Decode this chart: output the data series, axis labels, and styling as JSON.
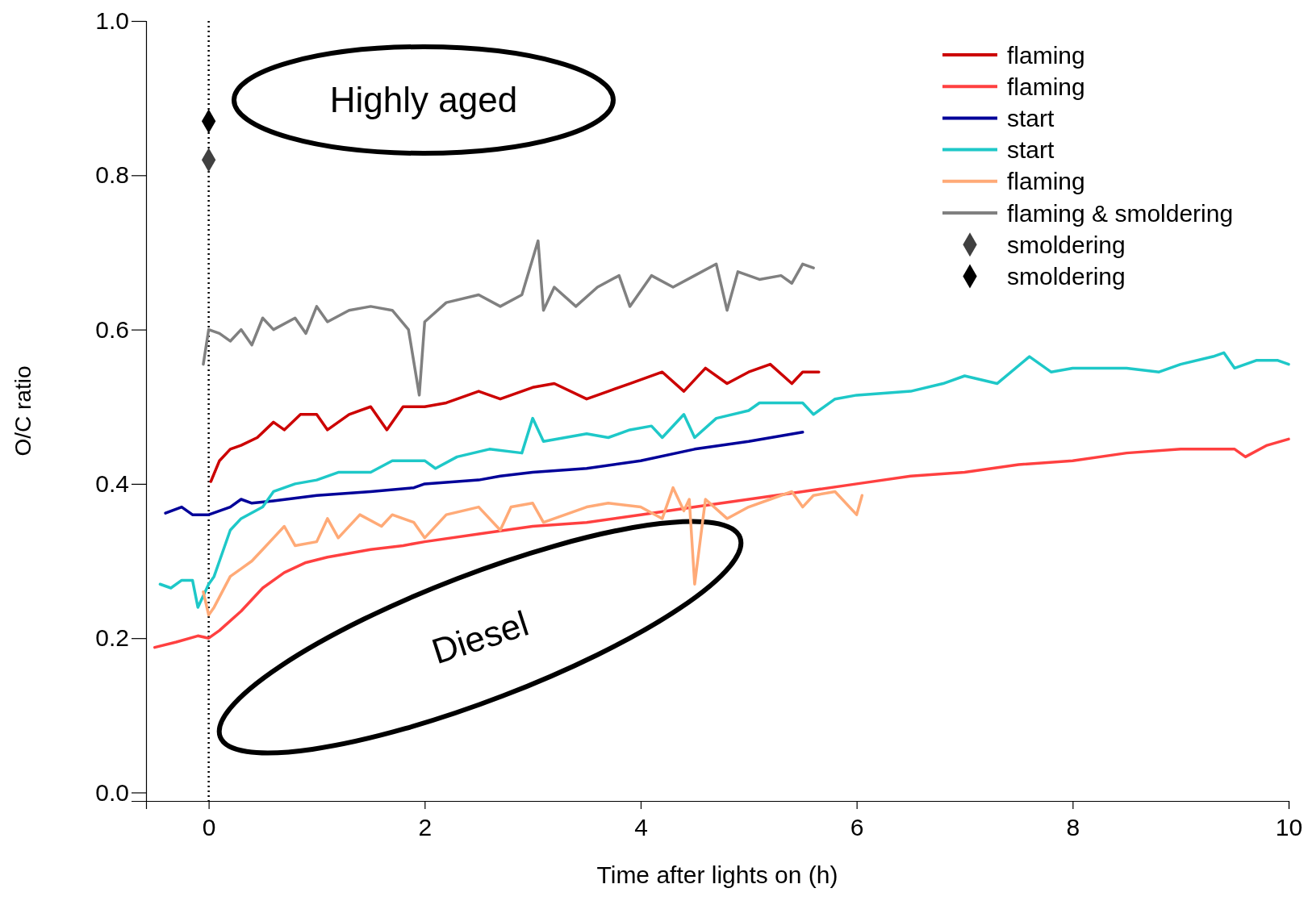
{
  "chart_data": {
    "type": "line",
    "xlabel": "Time after lights on (h)",
    "ylabel": "O/C ratio",
    "xlim": [
      -0.58,
      10
    ],
    "xticks": [
      0,
      2,
      4,
      6,
      8,
      10
    ],
    "ylim": [
      -0.011,
      1.0
    ],
    "yticks": [
      {
        "value": 0,
        "label": "0.0"
      },
      0.2,
      0.4,
      0.6,
      0.8,
      {
        "value": 1,
        "label": "1.0"
      }
    ],
    "grid": false,
    "legend": "top right",
    "marker": "none",
    "line_style": "solid",
    "ref_lines": [
      {
        "axis": "x",
        "value": 0,
        "color": "#000000",
        "line_style": "dotted"
      }
    ],
    "annotations": [
      "Highly aged",
      "Diesel"
    ],
    "series": [
      {
        "name": "flaming",
        "color": "#cc0000",
        "x": [
          0.02,
          0.1,
          0.2,
          0.3,
          0.45,
          0.6,
          0.7,
          0.85,
          1.0,
          1.1,
          1.3,
          1.5,
          1.65,
          1.8,
          2.0,
          2.2,
          2.5,
          2.7,
          3.0,
          3.2,
          3.5,
          3.7,
          3.9,
          4.2,
          4.4,
          4.6,
          4.8,
          5.0,
          5.2,
          5.4,
          5.5,
          5.65
        ],
        "values": [
          0.403,
          0.43,
          0.445,
          0.45,
          0.46,
          0.48,
          0.47,
          0.49,
          0.49,
          0.47,
          0.49,
          0.5,
          0.47,
          0.5,
          0.5,
          0.505,
          0.52,
          0.51,
          0.525,
          0.53,
          0.51,
          0.52,
          0.53,
          0.545,
          0.52,
          0.55,
          0.53,
          0.545,
          0.555,
          0.53,
          0.545,
          0.545
        ]
      },
      {
        "name": "flaming",
        "color": "#ff4040",
        "x": [
          -0.5,
          -0.3,
          -0.1,
          0,
          0.1,
          0.3,
          0.5,
          0.7,
          0.9,
          1.1,
          1.3,
          1.5,
          1.8,
          2.0,
          2.5,
          3.0,
          3.5,
          4.0,
          4.5,
          5.0,
          5.5,
          6.0,
          6.5,
          7.0,
          7.5,
          8.0,
          8.5,
          9.0,
          9.5,
          9.6,
          9.8,
          10
        ],
        "values": [
          0.188,
          0.195,
          0.203,
          0.2,
          0.21,
          0.235,
          0.265,
          0.285,
          0.298,
          0.305,
          0.31,
          0.315,
          0.32,
          0.325,
          0.335,
          0.345,
          0.35,
          0.36,
          0.37,
          0.38,
          0.39,
          0.4,
          0.41,
          0.415,
          0.425,
          0.43,
          0.44,
          0.445,
          0.445,
          0.435,
          0.45,
          0.458
        ]
      },
      {
        "name": "start",
        "color": "#000099",
        "x": [
          -0.4,
          -0.25,
          -0.15,
          0,
          0.2,
          0.3,
          0.4,
          0.6,
          1.0,
          1.5,
          1.9,
          2.0,
          2.5,
          2.7,
          3.0,
          3.5,
          4.0,
          4.5,
          5.0,
          5.5
        ],
        "values": [
          0.362,
          0.37,
          0.36,
          0.36,
          0.37,
          0.38,
          0.375,
          0.378,
          0.385,
          0.39,
          0.395,
          0.4,
          0.405,
          0.41,
          0.415,
          0.42,
          0.43,
          0.445,
          0.455,
          0.467
        ]
      },
      {
        "name": "start",
        "color": "#1ec8c8",
        "x": [
          -0.45,
          -0.35,
          -0.25,
          -0.15,
          -0.1,
          0,
          0.05,
          0.1,
          0.2,
          0.3,
          0.5,
          0.6,
          0.8,
          1.0,
          1.2,
          1.5,
          1.7,
          2.0,
          2.1,
          2.3,
          2.6,
          2.9,
          3.0,
          3.1,
          3.5,
          3.7,
          3.9,
          4.1,
          4.2,
          4.4,
          4.5,
          4.7,
          5.0,
          5.1,
          5.5,
          5.6,
          5.8,
          6.0,
          6.5,
          6.8,
          7.0,
          7.3,
          7.6,
          7.8,
          8.0,
          8.5,
          8.8,
          9.0,
          9.3,
          9.4,
          9.5,
          9.7,
          9.9,
          10
        ],
        "values": [
          0.27,
          0.265,
          0.275,
          0.275,
          0.24,
          0.27,
          0.28,
          0.3,
          0.34,
          0.355,
          0.37,
          0.39,
          0.4,
          0.405,
          0.415,
          0.415,
          0.43,
          0.43,
          0.42,
          0.435,
          0.445,
          0.44,
          0.485,
          0.455,
          0.465,
          0.46,
          0.47,
          0.475,
          0.46,
          0.49,
          0.46,
          0.485,
          0.495,
          0.505,
          0.505,
          0.49,
          0.51,
          0.515,
          0.52,
          0.53,
          0.54,
          0.53,
          0.565,
          0.545,
          0.55,
          0.55,
          0.545,
          0.555,
          0.565,
          0.57,
          0.55,
          0.56,
          0.56,
          0.555
        ]
      },
      {
        "name": "flaming",
        "color": "#ffaa77",
        "x": [
          -0.05,
          0,
          0.05,
          0.2,
          0.3,
          0.4,
          0.5,
          0.6,
          0.7,
          0.8,
          1.0,
          1.1,
          1.2,
          1.4,
          1.6,
          1.7,
          1.9,
          2.0,
          2.2,
          2.5,
          2.7,
          2.8,
          3.0,
          3.1,
          3.3,
          3.5,
          3.7,
          4.0,
          4.2,
          4.3,
          4.4,
          4.45,
          4.5,
          4.6,
          4.8,
          5.0,
          5.2,
          5.4,
          5.5,
          5.6,
          5.8,
          6.0,
          6.05
        ],
        "values": [
          0.26,
          0.23,
          0.24,
          0.28,
          0.29,
          0.3,
          0.315,
          0.33,
          0.345,
          0.32,
          0.325,
          0.355,
          0.33,
          0.36,
          0.345,
          0.36,
          0.35,
          0.33,
          0.36,
          0.37,
          0.34,
          0.37,
          0.375,
          0.35,
          0.36,
          0.37,
          0.375,
          0.37,
          0.355,
          0.395,
          0.365,
          0.38,
          0.27,
          0.38,
          0.355,
          0.37,
          0.38,
          0.39,
          0.37,
          0.385,
          0.39,
          0.36,
          0.385
        ]
      },
      {
        "name": "flaming & smoldering",
        "color": "#808080",
        "x": [
          -0.05,
          0,
          0.1,
          0.2,
          0.3,
          0.4,
          0.5,
          0.6,
          0.8,
          0.9,
          1.0,
          1.1,
          1.3,
          1.5,
          1.7,
          1.85,
          1.95,
          2.0,
          2.2,
          2.5,
          2.7,
          2.9,
          3.05,
          3.1,
          3.2,
          3.4,
          3.6,
          3.8,
          3.9,
          4.1,
          4.3,
          4.5,
          4.7,
          4.8,
          4.9,
          5.1,
          5.3,
          5.4,
          5.5,
          5.6
        ],
        "values": [
          0.555,
          0.6,
          0.595,
          0.585,
          0.6,
          0.58,
          0.615,
          0.6,
          0.615,
          0.595,
          0.63,
          0.61,
          0.625,
          0.63,
          0.625,
          0.6,
          0.515,
          0.61,
          0.635,
          0.645,
          0.63,
          0.645,
          0.715,
          0.625,
          0.655,
          0.63,
          0.655,
          0.67,
          0.63,
          0.67,
          0.655,
          0.67,
          0.685,
          0.625,
          0.675,
          0.665,
          0.67,
          0.66,
          0.685,
          0.68
        ]
      },
      {
        "name": "smoldering",
        "type": "scatter",
        "marker": "diamond",
        "color": "#404040",
        "x": [
          0
        ],
        "values": [
          0.82
        ]
      },
      {
        "name": "smoldering",
        "type": "scatter",
        "marker": "diamond",
        "color": "#000000",
        "x": [
          0
        ],
        "values": [
          0.87
        ]
      }
    ]
  }
}
